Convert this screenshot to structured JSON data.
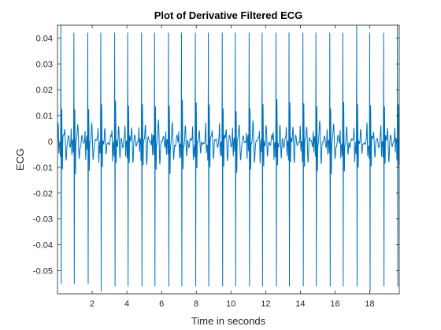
{
  "chart_data": {
    "type": "line",
    "title": "Plot of Derivative Filtered ECG",
    "xlabel": "Time in seconds",
    "ylabel": "ECG",
    "xlim": [
      0,
      19.7
    ],
    "ylim": [
      -0.059,
      0.045
    ],
    "grid": false,
    "x_ticks": [
      2,
      4,
      6,
      8,
      10,
      12,
      14,
      16,
      18
    ],
    "x_tick_labels": [
      "2",
      "4",
      "6",
      "8",
      "10",
      "12",
      "14",
      "16",
      "18"
    ],
    "y_ticks": [
      0.04,
      0.03,
      0.02,
      0.01,
      0,
      -0.01,
      -0.02,
      -0.03,
      -0.04,
      -0.05
    ],
    "y_tick_labels": [
      "0.04",
      "0.03",
      "0.02",
      "0.01",
      "0",
      "-0.01",
      "-0.02",
      "-0.03",
      "-0.04",
      "-0.05"
    ],
    "line_color": "#0072BD",
    "series": [
      {
        "name": "",
        "beat_times": [
          0.2,
          0.95,
          1.75,
          2.5,
          3.3,
          4.05,
          4.85,
          5.6,
          6.4,
          7.15,
          7.95,
          8.7,
          9.5,
          10.25,
          11.05,
          11.8,
          12.6,
          13.35,
          14.15,
          14.9,
          15.7,
          16.45,
          17.25,
          18.0,
          18.8,
          19.6
        ],
        "peak_values": [
          0.045,
          0.042,
          0.042,
          0.042,
          0.042,
          0.042,
          0.042,
          0.042,
          0.042,
          0.042,
          0.042,
          0.042,
          0.042,
          0.042,
          0.042,
          0.042,
          0.042,
          0.042,
          0.042,
          0.042,
          0.042,
          0.042,
          0.045,
          0.042,
          0.042,
          0.045
        ],
        "trough_values": [
          -0.055,
          -0.055,
          -0.055,
          -0.058,
          -0.056,
          -0.056,
          -0.056,
          -0.056,
          -0.056,
          -0.056,
          -0.056,
          -0.056,
          -0.056,
          -0.056,
          -0.056,
          -0.056,
          -0.056,
          -0.056,
          -0.056,
          -0.056,
          -0.056,
          -0.056,
          -0.056,
          -0.058,
          -0.056,
          -0.056
        ]
      }
    ]
  }
}
